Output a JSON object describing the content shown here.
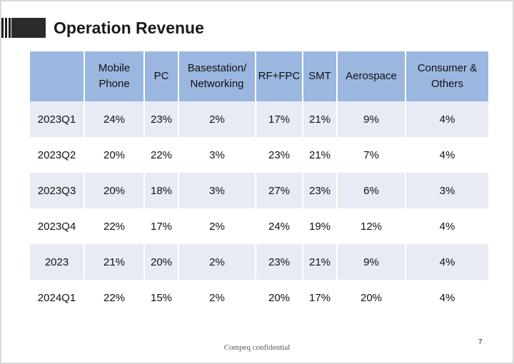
{
  "title": "Operation Revenue",
  "table": {
    "headers": [
      "",
      "Mobile\nPhone",
      "PC",
      "Basestation/\nNetworking",
      "RF+FPC",
      "SMT",
      "Aerospace",
      "Consumer &\nOthers"
    ],
    "rows": [
      [
        "2023Q1",
        "24%",
        "23%",
        "2%",
        "17%",
        "21%",
        "9%",
        "4%"
      ],
      [
        "2023Q2",
        "20%",
        "22%",
        "3%",
        "23%",
        "21%",
        "7%",
        "4%"
      ],
      [
        "2023Q3",
        "20%",
        "18%",
        "3%",
        "27%",
        "23%",
        "6%",
        "3%"
      ],
      [
        "2023Q4",
        "22%",
        "17%",
        "2%",
        "24%",
        "19%",
        "12%",
        "4%"
      ],
      [
        "2023",
        "21%",
        "20%",
        "2%",
        "23%",
        "21%",
        "9%",
        "4%"
      ],
      [
        "2024Q1",
        "22%",
        "15%",
        "2%",
        "20%",
        "17%",
        "20%",
        "4%"
      ]
    ]
  },
  "footer": "Compeq confidential",
  "page_number": "7",
  "colors": {
    "header_bg": "#9bb7e0",
    "shaded_row_bg": "#e8ebf4"
  }
}
